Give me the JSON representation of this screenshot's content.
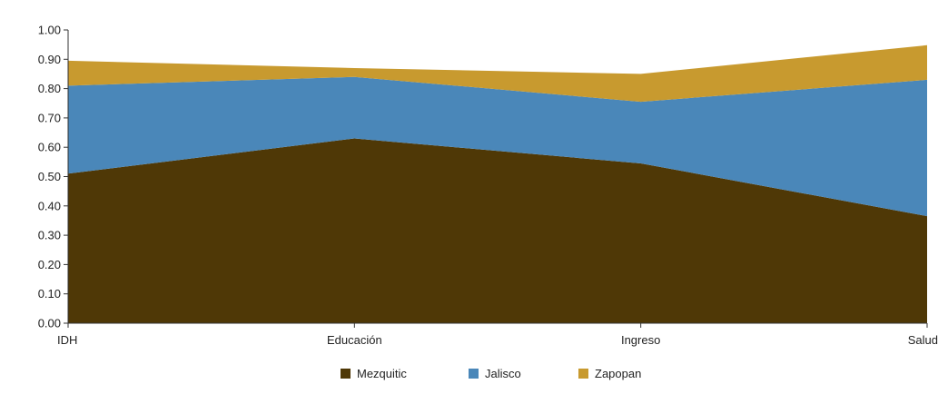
{
  "chart_data": {
    "type": "area",
    "stacked": true,
    "categories": [
      "IDH",
      "Educación",
      "Ingreso",
      "Salud"
    ],
    "y_ticks": [
      "0.00",
      "0.10",
      "0.20",
      "0.30",
      "0.40",
      "0.50",
      "0.60",
      "0.70",
      "0.80",
      "0.90",
      "1.00"
    ],
    "ylim": [
      0,
      1
    ],
    "grid": false,
    "legend_position": "bottom",
    "series": [
      {
        "name": "Mezquitic",
        "color": "#4f3806",
        "values": [
          0.51,
          0.63,
          0.545,
          0.365
        ]
      },
      {
        "name": "Jalisco",
        "color": "#4a87b9",
        "values": [
          0.81,
          0.84,
          0.755,
          0.83
        ]
      },
      {
        "name": "Zapopan",
        "color": "#c89a2f",
        "values": [
          0.895,
          0.87,
          0.85,
          0.948
        ]
      }
    ]
  }
}
